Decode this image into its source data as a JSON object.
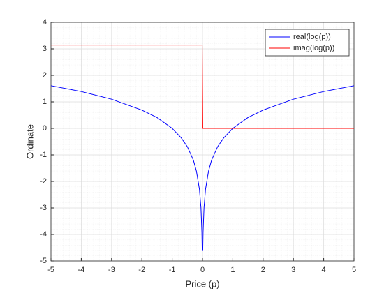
{
  "chart_data": {
    "type": "line",
    "x_label": "Price (p)",
    "y_label": "Ordinate",
    "x": [
      -5,
      -4,
      -3,
      -2,
      -1.5,
      -1,
      -0.7,
      -0.5,
      -0.3,
      -0.2,
      -0.1,
      -0.05,
      -0.02,
      -0.01,
      0.01,
      0.02,
      0.05,
      0.1,
      0.2,
      0.3,
      0.5,
      0.7,
      1,
      1.5,
      2,
      3,
      4,
      5
    ],
    "series": [
      {
        "name": "real(log(p))",
        "color": "#0000ff",
        "values": [
          1.61,
          1.39,
          1.1,
          0.69,
          0.41,
          0,
          -0.36,
          -0.69,
          -1.2,
          -1.61,
          -2.3,
          -3.0,
          -3.91,
          -4.61,
          -4.61,
          -3.91,
          -3.0,
          -2.3,
          -1.61,
          -1.2,
          -0.69,
          -0.36,
          0,
          0.41,
          0.69,
          1.1,
          1.39,
          1.61
        ]
      },
      {
        "name": "imag(log(p))",
        "color": "#ff0000",
        "values": [
          3.14,
          3.14,
          3.14,
          3.14,
          3.14,
          3.14,
          3.14,
          3.14,
          3.14,
          3.14,
          3.14,
          3.14,
          3.14,
          3.14,
          0,
          0,
          0,
          0,
          0,
          0,
          0,
          0,
          0,
          0,
          0,
          0,
          0,
          0
        ]
      }
    ],
    "xlim": [
      -5,
      5
    ],
    "xticks": [
      -5,
      -4,
      -3,
      -2,
      -1,
      0,
      1,
      2,
      3,
      4,
      5
    ],
    "ylim": [
      -5,
      4
    ],
    "yticks": [
      -5,
      -4,
      -3,
      -2,
      -1,
      0,
      1,
      2,
      3,
      4
    ],
    "grid": true,
    "legend": "top-right"
  }
}
